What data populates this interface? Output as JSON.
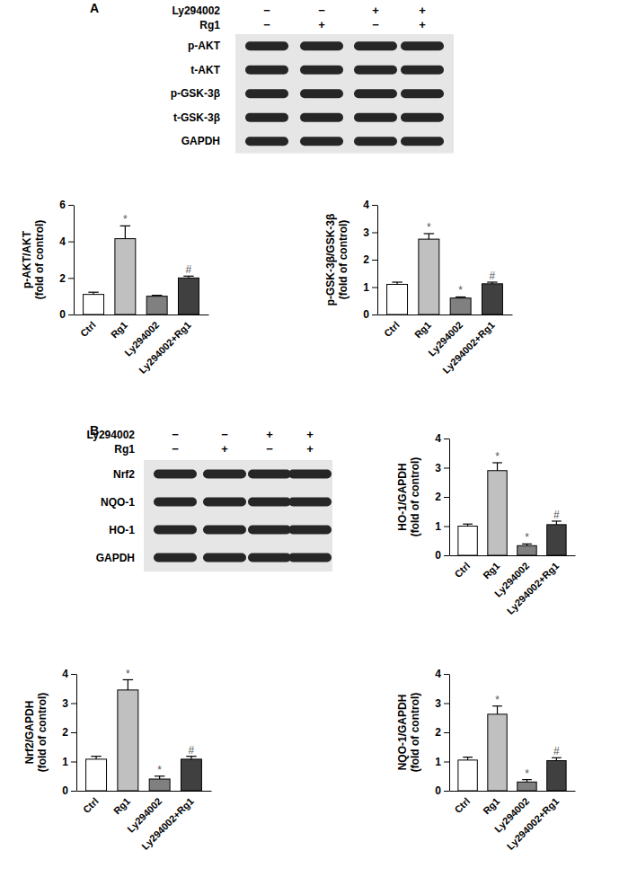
{
  "panels": [
    {
      "label": "A",
      "blot": {
        "conditions": [
          {
            "name": "Ly294002",
            "signs": [
              "−",
              "−",
              "+",
              "+"
            ]
          },
          {
            "name": "Rg1",
            "signs": [
              "−",
              "+",
              "−",
              "+"
            ]
          }
        ],
        "bands": [
          "p-AKT",
          "t-AKT",
          "p-GSK-3β",
          "t-GSK-3β",
          "GAPDH"
        ]
      }
    },
    {
      "label": "B",
      "blot": {
        "conditions": [
          {
            "name": "Ly294002",
            "signs": [
              "−",
              "−",
              "+",
              "+"
            ]
          },
          {
            "name": "Rg1",
            "signs": [
              "−",
              "+",
              "−",
              "+"
            ]
          }
        ],
        "bands": [
          "Nrf2",
          "NQO-1",
          "HO-1",
          "GAPDH"
        ]
      }
    }
  ],
  "chart_data": [
    {
      "type": "bar",
      "ylabel": [
        "p-AKT/AKT",
        "(fold of control)"
      ],
      "categories": [
        "Ctrl",
        "Rg1",
        "Ly294002",
        "Ly294002+Rg1"
      ],
      "values": [
        1.1,
        4.15,
        1.0,
        2.0
      ],
      "errors": [
        0.12,
        0.7,
        0.05,
        0.1
      ],
      "annotations": [
        null,
        "*",
        null,
        "#"
      ],
      "colors": [
        "#ffffff",
        "#c0c0c0",
        "#808080",
        "#404040"
      ],
      "ylim": [
        0,
        6
      ],
      "yticks": [
        0,
        2,
        4,
        6
      ]
    },
    {
      "type": "bar",
      "ylabel": [
        "p-GSK-3β/GSK-3β",
        "(fold of control)"
      ],
      "categories": [
        "Ctrl",
        "Rg1",
        "Ly294002",
        "Ly294002+Rg1"
      ],
      "values": [
        1.1,
        2.75,
        0.6,
        1.12
      ],
      "errors": [
        0.08,
        0.2,
        0.04,
        0.06
      ],
      "annotations": [
        null,
        "*",
        "*",
        "#"
      ],
      "colors": [
        "#ffffff",
        "#c0c0c0",
        "#808080",
        "#404040"
      ],
      "ylim": [
        0,
        4
      ],
      "yticks": [
        0,
        1,
        2,
        3,
        4
      ]
    },
    {
      "type": "bar",
      "ylabel": [
        "HO-1/GAPDH",
        "(fold of control)"
      ],
      "categories": [
        "Ctrl",
        "Rg1",
        "Ly294002",
        "Ly294002+Rg1"
      ],
      "values": [
        1.0,
        2.9,
        0.33,
        1.05
      ],
      "errors": [
        0.07,
        0.27,
        0.06,
        0.12
      ],
      "annotations": [
        null,
        "*",
        "*",
        "#"
      ],
      "colors": [
        "#ffffff",
        "#c0c0c0",
        "#808080",
        "#404040"
      ],
      "ylim": [
        0,
        4
      ],
      "yticks": [
        0,
        1,
        2,
        3,
        4
      ]
    },
    {
      "type": "bar",
      "ylabel": [
        "Nrf2/GAPDH",
        "(fold of control)"
      ],
      "categories": [
        "Ctrl",
        "Rg1",
        "Ly294002",
        "Ly294002+Rg1"
      ],
      "values": [
        1.08,
        3.45,
        0.4,
        1.08
      ],
      "errors": [
        0.1,
        0.35,
        0.1,
        0.1
      ],
      "annotations": [
        null,
        "*",
        "*",
        "#"
      ],
      "colors": [
        "#ffffff",
        "#c0c0c0",
        "#808080",
        "#404040"
      ],
      "ylim": [
        0,
        4
      ],
      "yticks": [
        0,
        1,
        2,
        3,
        4
      ]
    },
    {
      "type": "bar",
      "ylabel": [
        "NQO-1/GAPDH",
        "(fold of control)"
      ],
      "categories": [
        "Ctrl",
        "Rg1",
        "Ly294002",
        "Ly294002+Rg1"
      ],
      "values": [
        1.05,
        2.62,
        0.3,
        1.03
      ],
      "errors": [
        0.1,
        0.28,
        0.08,
        0.1
      ],
      "annotations": [
        null,
        "*",
        "*",
        "#"
      ],
      "colors": [
        "#ffffff",
        "#c0c0c0",
        "#808080",
        "#404040"
      ],
      "ylim": [
        0,
        4
      ],
      "yticks": [
        0,
        1,
        2,
        3,
        4
      ]
    }
  ]
}
